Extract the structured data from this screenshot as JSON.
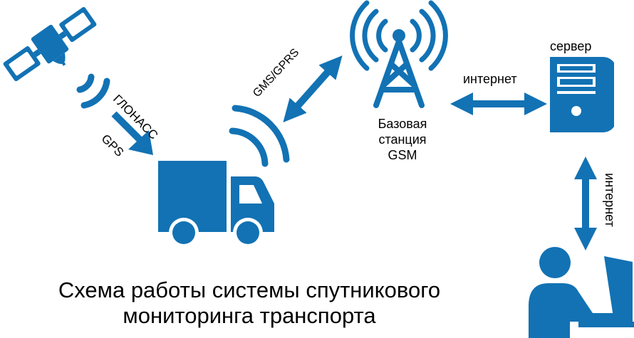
{
  "colors": {
    "primary": "#1272b4",
    "text": "#000000",
    "background": "#ffffff"
  },
  "nodes": {
    "satellite": {
      "icon": "satellite-icon"
    },
    "truck": {
      "icon": "truck-icon"
    },
    "tower": {
      "icon": "cell-tower-icon",
      "label_lines": [
        "Базовая",
        "станция",
        "GSM"
      ]
    },
    "server": {
      "icon": "server-icon",
      "label": "сервер"
    },
    "operator": {
      "icon": "operator-at-computer-icon"
    }
  },
  "links": {
    "satellite_truck": {
      "label_top": "ГЛОНАСС",
      "label_bottom": "GPS"
    },
    "truck_tower": {
      "label": "GMS/GPRS"
    },
    "tower_server": {
      "label": "интернет"
    },
    "server_operator": {
      "label": "интернет"
    }
  },
  "caption": {
    "line1": "Схема работы системы спутникового",
    "line2": "мониторинга транспорта"
  }
}
